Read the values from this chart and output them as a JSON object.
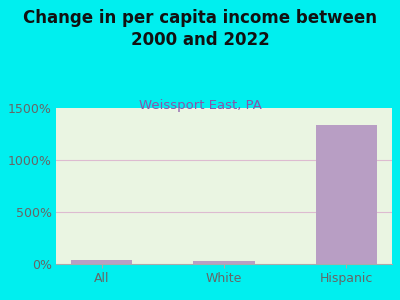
{
  "title": "Change in per capita income between\n2000 and 2022",
  "subtitle": "Weissport East, PA",
  "categories": [
    "All",
    "White",
    "Hispanic"
  ],
  "values": [
    35,
    30,
    1340
  ],
  "bar_color": "#b89ec4",
  "background_outer": "#00efef",
  "background_plot": "#eaf5e2",
  "title_color": "#111111",
  "subtitle_color": "#8855aa",
  "tick_label_color": "#666666",
  "ylim": [
    0,
    1500
  ],
  "yticks": [
    0,
    500,
    1000,
    1500
  ],
  "ytick_labels": [
    "0%",
    "500%",
    "1000%",
    "1500%"
  ],
  "grid_color": "#ddbbd0",
  "title_fontsize": 12,
  "subtitle_fontsize": 9.5,
  "axis_label_fontsize": 9
}
